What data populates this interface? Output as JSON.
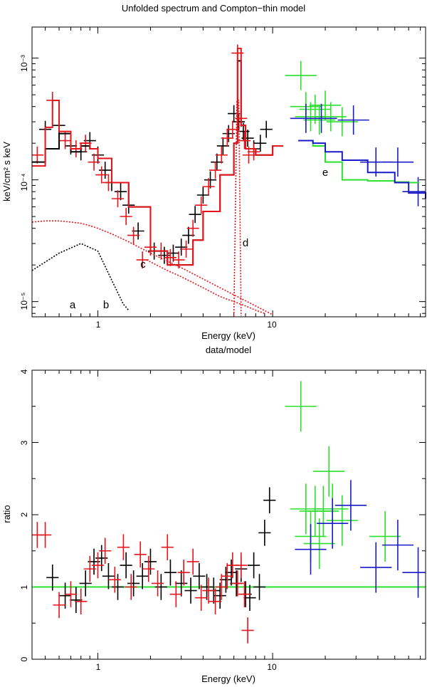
{
  "colors": {
    "black": "#000000",
    "red": "#e8141b",
    "green": "#2ae02a",
    "blue": "#1a1ac8",
    "axis": "#000000"
  },
  "chart_data": [
    {
      "id": "spectrum",
      "type": "scatter",
      "title": "Unfolded spectrum and Compton−thin model",
      "xlabel": "Energy (keV)",
      "ylabel": "keV/cm² s keV",
      "xscale": "log",
      "yscale": "log",
      "xlim": [
        0.42,
        75
      ],
      "ylim": [
        7.5e-06,
        0.0018
      ],
      "x_tick_labels": [
        "1",
        "10"
      ],
      "y_tick_labels": [
        "10⁻⁵",
        "10⁻⁴",
        "10⁻³"
      ],
      "annotations": [
        {
          "text": "a",
          "x": 0.7,
          "y": 9.5e-06
        },
        {
          "text": "b",
          "x": 1.08,
          "y": 9.5e-06
        },
        {
          "text": "c",
          "x": 1.78,
          "y": 1.9e-05
        },
        {
          "text": "d",
          "x": 7.2,
          "y": 3.2e-05
        },
        {
          "text": "e",
          "x": 20.0,
          "y": 9.8e-05
        }
      ],
      "series": [
        {
          "name": "data 1",
          "color_key": "black",
          "style": "crosses",
          "x": [
            0.5,
            0.6,
            0.7,
            0.8,
            0.9,
            1.0,
            1.1,
            1.2,
            1.35,
            1.5,
            1.7,
            2.1,
            2.4,
            2.7,
            3.0,
            3.3,
            3.6,
            4.0,
            4.4,
            4.8,
            5.2,
            5.6,
            6.0,
            6.4,
            6.8,
            7.2,
            7.8,
            8.5,
            9.2
          ],
          "y": [
            0.00026,
            0.00028,
            0.00019,
            0.00017,
            0.00021,
            0.00016,
            0.00012,
            9.5e-05,
            8e-05,
            6.2e-05,
            3.8e-05,
            2.6e-05,
            2.4e-05,
            2.5e-05,
            2.8e-05,
            3.5e-05,
            5.2e-05,
            7.5e-05,
            0.0001,
            0.00014,
            0.00019,
            0.00024,
            0.00035,
            0.0003,
            0.00025,
            0.00022,
            0.00018,
            0.0002,
            0.00026
          ]
        },
        {
          "name": "data 2",
          "color_key": "red",
          "style": "crosses",
          "x": [
            0.45,
            0.55,
            0.65,
            0.75,
            0.85,
            0.95,
            1.05,
            1.15,
            1.3,
            1.45,
            1.6,
            1.8,
            2.0,
            2.3,
            2.6,
            2.9,
            3.2,
            3.5,
            3.9,
            4.3,
            4.7,
            5.1,
            5.5,
            5.9,
            6.3,
            6.6,
            6.9,
            7.3,
            7.8
          ],
          "y": [
            0.00016,
            0.00045,
            0.00021,
            0.00018,
            0.0002,
            0.00014,
            0.00011,
            9.5e-05,
            7e-05,
            5e-05,
            3.5e-05,
            2.2e-05,
            2.8e-05,
            2.6e-05,
            2.3e-05,
            2.2e-05,
            2.7e-05,
            4e-05,
            6.2e-05,
            8.8e-05,
            0.00012,
            0.00016,
            0.00022,
            0.00026,
            0.0011,
            0.00032,
            0.00021,
            0.00016,
            0.00017
          ]
        },
        {
          "name": "data 3",
          "color_key": "green",
          "style": "crosses",
          "x": [
            14.5,
            15.5,
            16.5,
            17.5,
            18.5,
            20.0,
            21.5,
            25.0
          ],
          "y": [
            0.00072,
            0.0004,
            0.00033,
            0.00038,
            0.00031,
            0.00041,
            0.00033,
            0.0003
          ]
        },
        {
          "name": "data 4",
          "color_key": "blue",
          "style": "crosses",
          "x": [
            15.5,
            19.0,
            29.0,
            39.0,
            52.0,
            68.0
          ],
          "y": [
            0.00032,
            0.00032,
            0.00031,
            0.00014,
            0.00014,
            8e-05
          ]
        },
        {
          "name": "model 1",
          "color_key": "black",
          "style": "step",
          "x": [
            0.42,
            0.5,
            0.6,
            0.7,
            0.8,
            0.9,
            1.0,
            1.2,
            1.5,
            2.0,
            2.5,
            3.0,
            3.5,
            4.0,
            5.0,
            6.0,
            6.3,
            6.6,
            7.0,
            8.0,
            10.0
          ],
          "y": [
            0.00014,
            0.00018,
            0.00024,
            0.00017,
            0.00019,
            0.00018,
            0.00015,
            9.5e-05,
            6e-05,
            2.6e-05,
            2e-05,
            2e-05,
            3.2e-05,
            5.5e-05,
            0.00011,
            0.0002,
            0.00095,
            0.00028,
            0.00018,
            0.00016,
            0.00019
          ]
        },
        {
          "name": "model 2",
          "color_key": "red",
          "style": "step",
          "x": [
            0.42,
            0.5,
            0.55,
            0.6,
            0.7,
            0.8,
            0.9,
            1.0,
            1.2,
            1.5,
            2.0,
            2.5,
            3.0,
            3.5,
            4.0,
            5.0,
            6.0,
            6.3,
            6.6,
            7.0,
            8.0,
            10.0
          ],
          "y": [
            0.00013,
            0.00027,
            0.00045,
            0.00025,
            0.00018,
            0.0002,
            0.00018,
            0.00015,
            9.5e-05,
            6e-05,
            2.6e-05,
            2e-05,
            2e-05,
            3.2e-05,
            5.5e-05,
            0.00011,
            0.0002,
            0.0012,
            0.00028,
            0.00018,
            0.00016,
            0.00019
          ]
        },
        {
          "name": "model 3",
          "color_key": "green",
          "style": "step",
          "x": [
            14,
            17,
            20,
            25,
            35,
            50,
            60
          ],
          "y": [
            0.00021,
            0.00019,
            0.00014,
            0.0001,
            9.8e-05,
            9.6e-05,
            9.5e-05
          ]
        },
        {
          "name": "model 4",
          "color_key": "blue",
          "style": "step",
          "x": [
            14,
            17,
            20,
            25,
            35,
            50,
            60,
            75
          ],
          "y": [
            0.00021,
            0.0002,
            0.00017,
            0.000145,
            0.000115,
            9.5e-05,
            7.8e-05,
            7e-05
          ]
        },
        {
          "name": "component a",
          "color_key": "red",
          "style": "dotted",
          "x": [
            0.42,
            0.5,
            0.6,
            0.7,
            0.8,
            0.9,
            1.0,
            1.2,
            1.5,
            2.0,
            3.0,
            5.0,
            8.0,
            10.0
          ],
          "y": [
            4.5e-05,
            4.6e-05,
            4.6e-05,
            4.5e-05,
            4.4e-05,
            4.2e-05,
            4e-05,
            3.6e-05,
            3.1e-05,
            2.5e-05,
            1.9e-05,
            1.3e-05,
            9.2e-06,
            7.8e-06
          ]
        },
        {
          "name": "component b",
          "color_key": "black",
          "style": "dotted",
          "x": [
            0.42,
            0.6,
            0.8,
            1.0,
            1.2,
            1.4,
            1.5
          ],
          "y": [
            1.8e-05,
            2.5e-05,
            3e-05,
            2.6e-05,
            1.5e-05,
            9.5e-06,
            8.5e-06
          ]
        },
        {
          "name": "component c",
          "color_key": "red",
          "style": "dotted",
          "x": [
            1.9,
            2.5,
            3.0,
            4.0,
            5.0,
            6.0,
            7.0,
            8.0,
            9.0
          ],
          "y": [
            2.2e-05,
            1.8e-05,
            1.6e-05,
            1.3e-05,
            1.1e-05,
            1e-05,
            9.2e-06,
            8.5e-06,
            8e-06
          ]
        },
        {
          "name": "component d",
          "color_key": "red",
          "style": "dotted",
          "x": [
            6.0,
            6.25,
            6.4,
            6.6
          ],
          "y": [
            7.6e-06,
            0.00045,
            0.00045,
            7.6e-06
          ]
        }
      ]
    },
    {
      "id": "ratio",
      "type": "scatter",
      "title": "data/model",
      "xlabel": "Energy (keV)",
      "ylabel": "ratio",
      "xscale": "log",
      "yscale": "linear",
      "xlim": [
        0.42,
        75
      ],
      "ylim": [
        0,
        4
      ],
      "x_tick_labels": [
        "1",
        "10"
      ],
      "y_tick_labels": [
        "0",
        "1",
        "2",
        "3",
        "4"
      ],
      "reference_line": {
        "y": 1,
        "color_key": "green"
      },
      "series": [
        {
          "name": "data 1",
          "color_key": "black",
          "style": "crosses",
          "x": [
            0.55,
            0.65,
            0.75,
            0.85,
            0.95,
            1.05,
            1.15,
            1.3,
            1.45,
            1.6,
            1.8,
            2.0,
            2.3,
            2.6,
            3.0,
            3.4,
            3.8,
            4.2,
            4.6,
            5.0,
            5.4,
            5.8,
            6.2,
            6.6,
            7.0,
            7.4,
            7.8,
            8.4,
            9.0,
            9.6
          ],
          "y": [
            1.13,
            0.88,
            0.82,
            1.05,
            1.35,
            1.4,
            1.15,
            1.0,
            1.3,
            1.05,
            1.15,
            1.35,
            1.0,
            1.2,
            1.05,
            0.95,
            1.15,
            1.0,
            0.95,
            0.88,
            1.1,
            1.2,
            1.05,
            1.25,
            0.9,
            0.85,
            1.3,
            1.0,
            1.75,
            2.2
          ]
        },
        {
          "name": "data 2",
          "color_key": "red",
          "style": "crosses",
          "x": [
            0.45,
            0.5,
            0.6,
            0.7,
            0.8,
            0.9,
            1.0,
            1.1,
            1.25,
            1.4,
            1.55,
            1.75,
            1.95,
            2.2,
            2.5,
            2.8,
            3.1,
            3.5,
            3.9,
            4.3,
            4.7,
            5.1,
            5.5,
            5.9,
            6.3,
            6.6,
            6.9,
            7.2
          ],
          "y": [
            1.72,
            1.72,
            0.75,
            0.9,
            0.8,
            1.25,
            1.3,
            1.5,
            1.1,
            1.55,
            1.0,
            1.45,
            1.25,
            1.05,
            1.55,
            0.9,
            1.2,
            1.35,
            0.85,
            0.95,
            0.8,
            1.0,
            1.15,
            1.3,
            1.05,
            1.3,
            0.9,
            0.4
          ]
        },
        {
          "name": "data 3",
          "color_key": "green",
          "style": "crosses",
          "x": [
            14.5,
            15.5,
            16.5,
            17.5,
            18.5,
            19.5,
            21.0,
            22.0,
            25.0,
            44.0
          ],
          "y": [
            3.5,
            2.08,
            1.7,
            2.05,
            1.6,
            2.05,
            2.6,
            2.08,
            1.92,
            1.7
          ]
        },
        {
          "name": "data 4",
          "color_key": "blue",
          "style": "crosses",
          "x": [
            16.5,
            22.0,
            28.0,
            39.0,
            52.0,
            68.0
          ],
          "y": [
            1.52,
            1.88,
            2.13,
            1.27,
            1.58,
            1.2
          ]
        }
      ]
    }
  ]
}
